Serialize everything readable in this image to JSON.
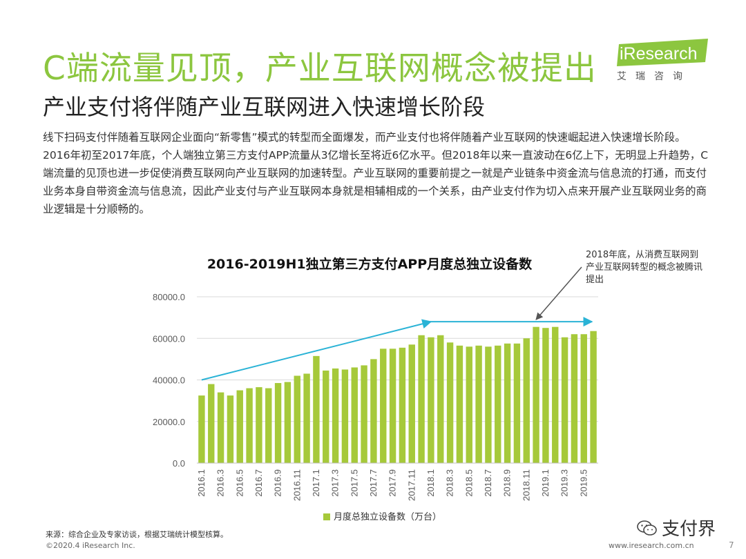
{
  "header": {
    "title": "C端流量见顶，产业互联网概念被提出",
    "subtitle": "产业支付将伴随产业互联网进入快速增长阶段",
    "logo_text": "iResearch",
    "logo_cn": "艾瑞咨询"
  },
  "body_text": "线下扫码支付伴随着互联网企业面向“新零售”模式的转型而全面爆发，而产业支付也将伴随着产业互联网的快速崛起进入快速增长阶段。 2016年初至2017年底，个人端独立第三方支付APP流量从3亿增长至将近6亿水平。但2018年以来一直波动在6亿上下，无明显上升趋势，C端流量的见顶也进一步促使消费互联网向产业互联网的加速转型。产业互联网的重要前提之一就是产业链条中资金流与信息流的打通，而支付业务本身自带资金流与信息流，因此产业支付与产业互联网本身就是相辅相成的一个关系，由产业支付作为切入点来开展产业互联网业务的商业逻辑是十分顺畅的。",
  "colors": {
    "accent": "#8cc63f",
    "bar": "#a6c93a",
    "trend_arrow": "#2ab3d6",
    "annotation_arrow": "#555555"
  },
  "chart_data": {
    "type": "bar",
    "title": "2016-2019H1独立第三方支付APP月度总独立设备数",
    "categories": [
      "2016.1",
      "2016.2",
      "2016.3",
      "2016.4",
      "2016.5",
      "2016.6",
      "2016.7",
      "2016.8",
      "2016.9",
      "2016.10",
      "2016.11",
      "2016.12",
      "2017.1",
      "2017.2",
      "2017.3",
      "2017.4",
      "2017.5",
      "2017.6",
      "2017.7",
      "2017.8",
      "2017.9",
      "2017.10",
      "2017.11",
      "2017.12",
      "2018.1",
      "2018.2",
      "2018.3",
      "2018.4",
      "2018.5",
      "2018.6",
      "2018.7",
      "2018.8",
      "2018.9",
      "2018.10",
      "2018.11",
      "2018.12",
      "2019.1",
      "2019.2",
      "2019.3",
      "2019.4",
      "2019.5",
      "2019.6"
    ],
    "tick_labels": [
      "2016.1",
      "2016.3",
      "2016.5",
      "2016.7",
      "2016.9",
      "2016.11",
      "2017.1",
      "2017.3",
      "2017.5",
      "2017.7",
      "2017.9",
      "2017.11",
      "2018.1",
      "2018.3",
      "2018.5",
      "2018.7",
      "2018.9",
      "2018.11",
      "2019.1",
      "2019.3",
      "2019.5"
    ],
    "series": [
      {
        "name": "月度总独立设备数（万台）",
        "values": [
          32500,
          38000,
          34000,
          32500,
          35000,
          36000,
          36500,
          36000,
          38500,
          39000,
          42000,
          43000,
          51500,
          44500,
          45500,
          45000,
          46000,
          47000,
          50000,
          55000,
          55000,
          55500,
          57000,
          61500,
          60500,
          61500,
          58000,
          56500,
          56000,
          56500,
          56000,
          56500,
          57500,
          57500,
          60000,
          65500,
          65000,
          65500,
          60500,
          62000,
          62000,
          63500
        ]
      }
    ],
    "ylim": [
      0,
      80000
    ],
    "yticks": [
      0,
      20000,
      40000,
      60000,
      80000
    ],
    "ytick_labels": [
      "0.0",
      "20000.0",
      "40000.0",
      "60000.0",
      "80000.0"
    ],
    "grid": true,
    "legend": "bottom",
    "annotation": "2018年底，从消费互联网到产业互联网转型的概念被腾讯提出",
    "trend_1": {
      "start": "2016.1",
      "start_value": 40000,
      "end": "2018.1",
      "end_value": 68000
    },
    "trend_2": {
      "start": "2017.12",
      "start_value": 68000,
      "end": "2019.6",
      "end_value": 68000
    },
    "annotation_arrow_target": {
      "x": "2018.12",
      "value": 69000
    }
  },
  "footer": {
    "source": "来源：综合企业及专家访谈，根据艾瑞统计模型核算。",
    "copyright": "©2020.4 iResearch Inc.",
    "website": "www.iresearch.com.cn",
    "page_number": "7",
    "wechat_name": "支付界"
  }
}
